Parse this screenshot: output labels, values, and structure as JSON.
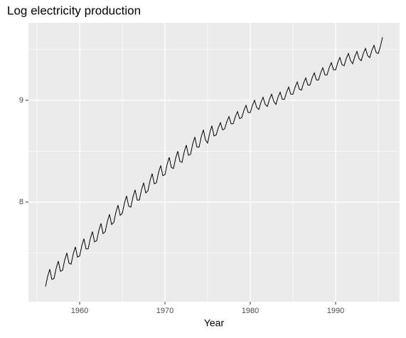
{
  "chart_data": {
    "type": "line",
    "title": "Log electricity production",
    "x_label": "Year",
    "xlim": [
      1954,
      1997.5
    ],
    "ylim": [
      7.021,
      9.762
    ],
    "xticks": [
      1960,
      1970,
      1980,
      1990
    ],
    "yticks": [
      8,
      9
    ],
    "xminor": [
      1955,
      1965,
      1975,
      1985,
      1995
    ],
    "yminor": [
      7.5,
      8.5,
      9.5
    ],
    "grid": true,
    "color": "#000000",
    "x": [
      1956,
      1956.25,
      1956.5,
      1956.75,
      1957,
      1957.25,
      1957.5,
      1957.75,
      1958,
      1958.25,
      1958.5,
      1958.75,
      1959,
      1959.25,
      1959.5,
      1959.75,
      1960,
      1960.25,
      1960.5,
      1960.75,
      1961,
      1961.25,
      1961.5,
      1961.75,
      1962,
      1962.25,
      1962.5,
      1962.75,
      1963,
      1963.25,
      1963.5,
      1963.75,
      1964,
      1964.25,
      1964.5,
      1964.75,
      1965,
      1965.25,
      1965.5,
      1965.75,
      1966,
      1966.25,
      1966.5,
      1966.75,
      1967,
      1967.25,
      1967.5,
      1967.75,
      1968,
      1968.25,
      1968.5,
      1968.75,
      1969,
      1969.25,
      1969.5,
      1969.75,
      1970,
      1970.25,
      1970.5,
      1970.75,
      1971,
      1971.25,
      1971.5,
      1971.75,
      1972,
      1972.25,
      1972.5,
      1972.75,
      1973,
      1973.25,
      1973.5,
      1973.75,
      1974,
      1974.25,
      1974.5,
      1974.75,
      1975,
      1975.25,
      1975.5,
      1975.75,
      1976,
      1976.25,
      1976.5,
      1976.75,
      1977,
      1977.25,
      1977.5,
      1977.75,
      1978,
      1978.25,
      1978.5,
      1978.75,
      1979,
      1979.25,
      1979.5,
      1979.75,
      1980,
      1980.25,
      1980.5,
      1980.75,
      1981,
      1981.25,
      1981.5,
      1981.75,
      1982,
      1982.25,
      1982.5,
      1982.75,
      1983,
      1983.25,
      1983.5,
      1983.75,
      1984,
      1984.25,
      1984.5,
      1984.75,
      1985,
      1985.25,
      1985.5,
      1985.75,
      1986,
      1986.25,
      1986.5,
      1986.75,
      1987,
      1987.25,
      1987.5,
      1987.75,
      1988,
      1988.25,
      1988.5,
      1988.75,
      1989,
      1989.25,
      1989.5,
      1989.75,
      1990,
      1990.25,
      1990.5,
      1990.75,
      1991,
      1991.25,
      1991.5,
      1991.75,
      1992,
      1992.25,
      1992.5,
      1992.75,
      1993,
      1993.25,
      1993.5,
      1993.75,
      1994,
      1994.25,
      1994.5,
      1994.75,
      1995,
      1995.25,
      1995.5
    ],
    "values": [
      7.17,
      7.27,
      7.34,
      7.24,
      7.25,
      7.35,
      7.42,
      7.32,
      7.33,
      7.43,
      7.5,
      7.4,
      7.39,
      7.49,
      7.56,
      7.46,
      7.47,
      7.57,
      7.64,
      7.54,
      7.54,
      7.64,
      7.71,
      7.61,
      7.62,
      7.72,
      7.79,
      7.69,
      7.71,
      7.81,
      7.88,
      7.78,
      7.8,
      7.9,
      7.97,
      7.87,
      7.89,
      7.99,
      8.06,
      7.96,
      7.95,
      8.05,
      8.12,
      8.02,
      8.02,
      8.12,
      8.19,
      8.09,
      8.11,
      8.21,
      8.28,
      8.18,
      8.19,
      8.29,
      8.36,
      8.26,
      8.27,
      8.37,
      8.44,
      8.34,
      8.33,
      8.43,
      8.5,
      8.4,
      8.39,
      8.49,
      8.56,
      8.46,
      8.47,
      8.57,
      8.64,
      8.54,
      8.54,
      8.64,
      8.71,
      8.61,
      8.58,
      8.68,
      8.75,
      8.65,
      8.66,
      8.73,
      8.78,
      8.71,
      8.72,
      8.79,
      8.84,
      8.77,
      8.77,
      8.84,
      8.89,
      8.82,
      8.83,
      8.9,
      8.95,
      8.88,
      8.88,
      8.95,
      9,
      8.93,
      8.91,
      8.98,
      9.03,
      8.96,
      8.94,
      9.01,
      9.06,
      8.99,
      8.96,
      9.03,
      9.08,
      9.01,
      9.01,
      9.08,
      9.13,
      9.06,
      9.06,
      9.13,
      9.18,
      9.11,
      9.1,
      9.17,
      9.22,
      9.15,
      9.15,
      9.22,
      9.27,
      9.2,
      9.2,
      9.27,
      9.32,
      9.25,
      9.25,
      9.32,
      9.37,
      9.3,
      9.3,
      9.37,
      9.42,
      9.35,
      9.34,
      9.41,
      9.46,
      9.39,
      9.36,
      9.43,
      9.48,
      9.41,
      9.39,
      9.46,
      9.51,
      9.44,
      9.42,
      9.49,
      9.54,
      9.47,
      9.46,
      9.53,
      9.62
    ]
  }
}
